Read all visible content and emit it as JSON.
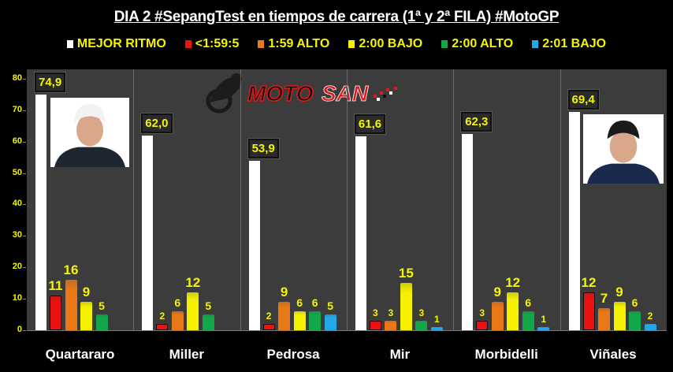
{
  "title": "DIA 2 #SepangTest en tiempos de carrera (1ª y 2ª FILA) #MotoGP",
  "logo_text": "MOTOSAN",
  "legend": [
    {
      "label": "MEJOR RITMO",
      "color": "#ffffff"
    },
    {
      "label": "<1:59:5",
      "color": "#ee1111"
    },
    {
      "label": "1:59 ALTO",
      "color": "#e87818"
    },
    {
      "label": "2:00 BAJO",
      "color": "#f5f000"
    },
    {
      "label": "2:00 ALTO",
      "color": "#12a84a"
    },
    {
      "label": "2:01 BAJO",
      "color": "#22a8e8"
    }
  ],
  "chart_data": {
    "type": "bar",
    "title": "DIA 2 #SepangTest en tiempos de carrera (1ª y 2ª FILA) #MotoGP",
    "xlabel": "",
    "ylabel": "",
    "ylim": [
      0,
      80
    ],
    "yticks": [
      0,
      10,
      20,
      30,
      40,
      50,
      60,
      70,
      80
    ],
    "grid": false,
    "legend_position": "top",
    "categories": [
      "Quartararo",
      "Miller",
      "Pedrosa",
      "Mir",
      "Morbidelli",
      "Viñales"
    ],
    "series": [
      {
        "name": "MEJOR RITMO",
        "values": [
          74.9,
          62.0,
          53.9,
          61.6,
          62.3,
          69.4
        ],
        "labels": [
          "74,9",
          "62,0",
          "53,9",
          "61,6",
          "62,3",
          "69,4"
        ]
      },
      {
        "name": "<1:59:5",
        "values": [
          11,
          2,
          2,
          3,
          3,
          12
        ]
      },
      {
        "name": "1:59 ALTO",
        "values": [
          16,
          6,
          9,
          3,
          9,
          7
        ]
      },
      {
        "name": "2:00 BAJO",
        "values": [
          9,
          12,
          6,
          15,
          12,
          9
        ]
      },
      {
        "name": "2:00 ALTO",
        "values": [
          5,
          5,
          6,
          3,
          6,
          6
        ]
      },
      {
        "name": "2:01 BAJO",
        "values": [
          null,
          null,
          5,
          1,
          1,
          2
        ]
      }
    ]
  }
}
